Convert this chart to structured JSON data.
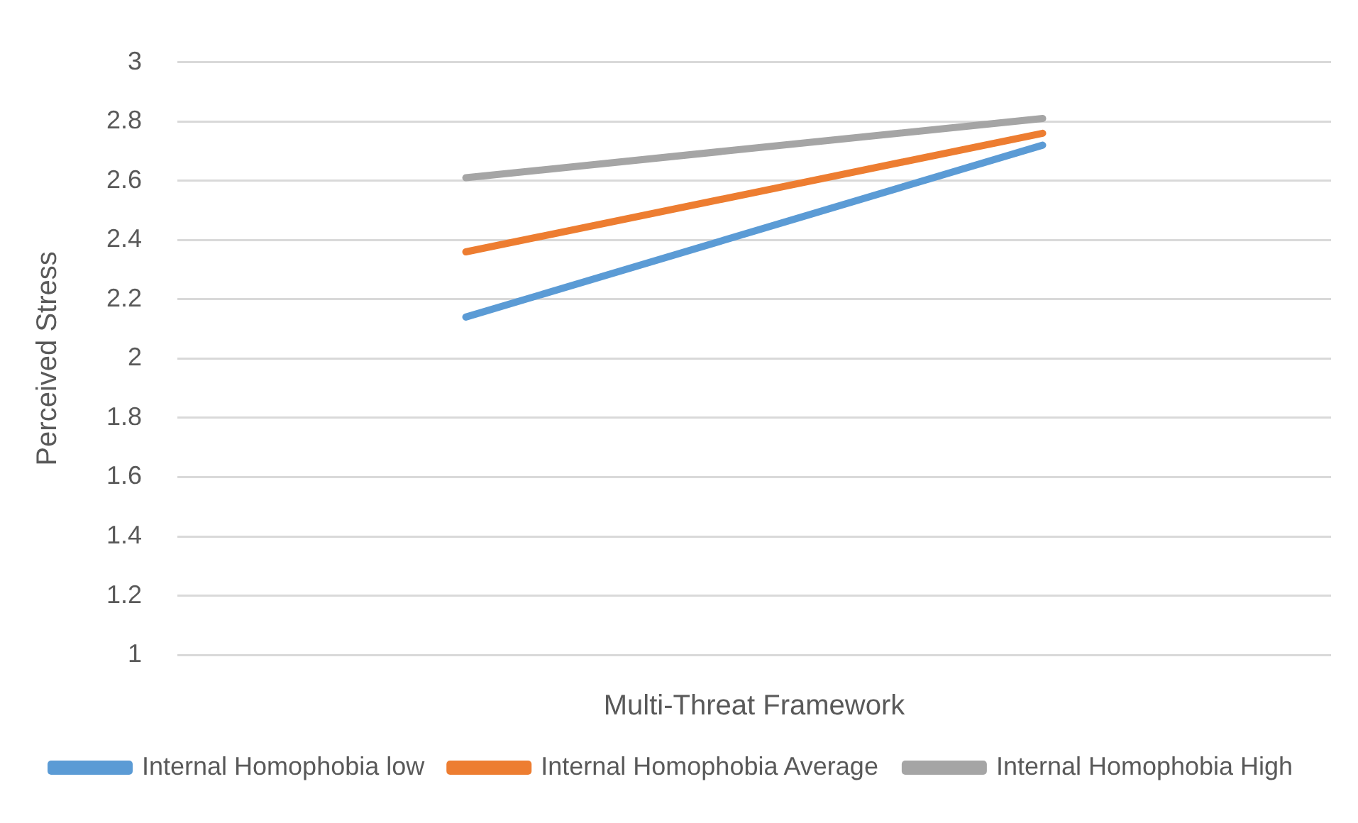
{
  "chart_data": {
    "type": "line",
    "xlabel": "Multi-Threat Framework",
    "ylabel": "Perceived Stress",
    "categories": [
      null,
      null
    ],
    "series": [
      {
        "name": "Internal Homophobia low",
        "color": "#5b9bd5",
        "values": [
          2.14,
          2.72
        ]
      },
      {
        "name": "Internal Homophobia Average",
        "color": "#ed7d31",
        "values": [
          2.36,
          2.76
        ]
      },
      {
        "name": "Internal Homophobia High",
        "color": "#a5a5a5",
        "values": [
          2.61,
          2.81
        ]
      }
    ],
    "ylim": [
      1,
      3
    ],
    "yticks": [
      1,
      1.2,
      1.4,
      1.6,
      1.8,
      2,
      2.2,
      2.4,
      2.6,
      2.8,
      3
    ],
    "grid": "y",
    "legend": "bottom",
    "marker": "none",
    "line_style": "solid"
  }
}
